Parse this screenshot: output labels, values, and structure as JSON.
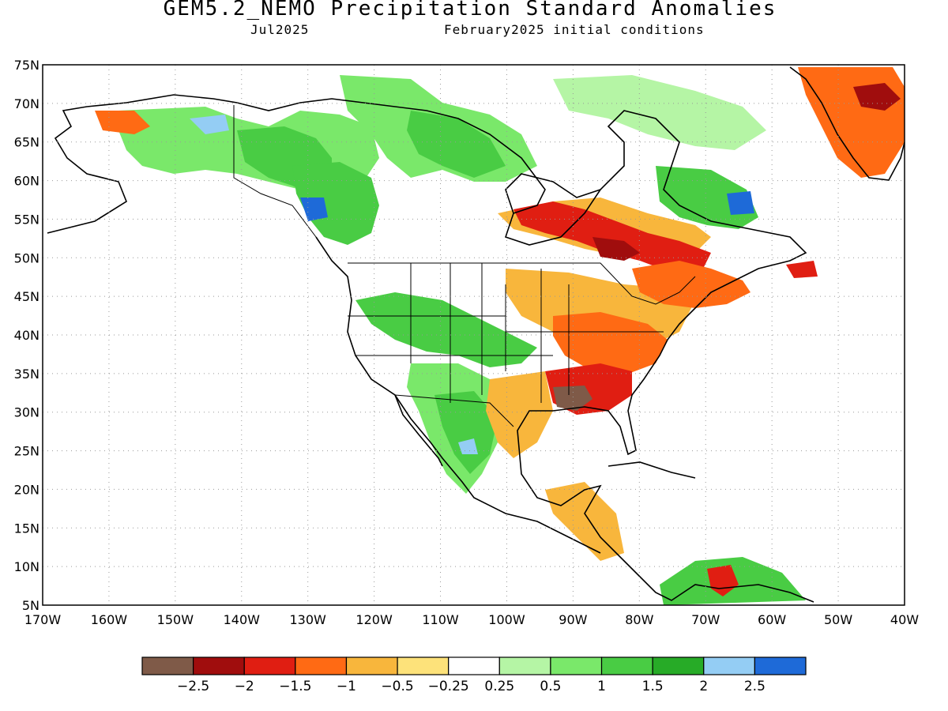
{
  "header": {
    "title": "GEM5.2_NEMO Precipitation Standard Anomalies",
    "valid_month": "Jul2025",
    "init": "February2025 initial conditions"
  },
  "map": {
    "lat_labels": [
      "5N",
      "10N",
      "15N",
      "20N",
      "25N",
      "30N",
      "35N",
      "40N",
      "45N",
      "50N",
      "55N",
      "60N",
      "65N",
      "70N",
      "75N"
    ],
    "lon_labels": [
      "170W",
      "160W",
      "150W",
      "140W",
      "130W",
      "120W",
      "110W",
      "100W",
      "90W",
      "80W",
      "70W",
      "60W",
      "50W",
      "40W"
    ],
    "lat_range": [
      5,
      75
    ],
    "lon_range": [
      -170,
      -40
    ],
    "grid": "dotted"
  },
  "legend": {
    "colors": [
      "#7f5a48",
      "#a00d0d",
      "#e01e12",
      "#ff6a14",
      "#f8b63c",
      "#fde27a",
      "#ffffff",
      "#b5f5a5",
      "#7ae86a",
      "#49cc44",
      "#27ab27",
      "#94cdf4",
      "#1e6ad8"
    ],
    "labels": [
      "−2.5",
      "−2",
      "−1.5",
      "−1",
      "−0.5",
      "−0.25",
      "0.25",
      "0.5",
      "1",
      "1.5",
      "2",
      "2.5"
    ]
  }
}
